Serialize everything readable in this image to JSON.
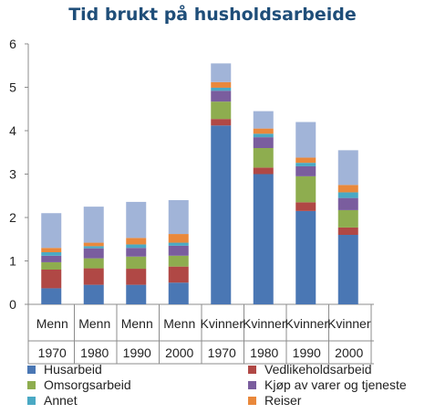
{
  "title": "Tid brukt på husholdsarbeide",
  "chart_data": {
    "type": "bar",
    "stacked": true,
    "title": "Tid brukt på husholdsarbeide",
    "categories": [
      {
        "group": "Menn",
        "year": "1970"
      },
      {
        "group": "Menn",
        "year": "1980"
      },
      {
        "group": "Menn",
        "year": "1990"
      },
      {
        "group": "Menn",
        "year": "2000"
      },
      {
        "group": "Kvinner",
        "year": "1970"
      },
      {
        "group": "Kvinner",
        "year": "1980"
      },
      {
        "group": "Kvinner",
        "year": "1990"
      },
      {
        "group": "Kvinner",
        "year": "2000"
      }
    ],
    "ylim": [
      0,
      6
    ],
    "yticks": [
      "0",
      "1",
      "2",
      "3",
      "4",
      "5",
      "6"
    ],
    "grid": false,
    "legend_position": "bottom",
    "series": [
      {
        "name": "Husarbeid",
        "color": "#4a77b4",
        "values": [
          0.37,
          0.45,
          0.45,
          0.5,
          4.12,
          3.0,
          2.15,
          1.6
        ]
      },
      {
        "name": "Vedlikeholdsarbeid",
        "color": "#b04845",
        "values": [
          0.43,
          0.38,
          0.37,
          0.37,
          0.15,
          0.15,
          0.2,
          0.17
        ]
      },
      {
        "name": "Omsorgsarbeid",
        "color": "#8ead4f",
        "values": [
          0.17,
          0.23,
          0.28,
          0.25,
          0.4,
          0.45,
          0.6,
          0.4
        ]
      },
      {
        "name": "Kjøp av varer og tjeneste",
        "color": "#7a5d9e",
        "values": [
          0.15,
          0.23,
          0.2,
          0.23,
          0.25,
          0.25,
          0.23,
          0.28
        ]
      },
      {
        "name": "Annet",
        "color": "#4aa9c4",
        "values": [
          0.08,
          0.05,
          0.08,
          0.07,
          0.07,
          0.08,
          0.08,
          0.13
        ]
      },
      {
        "name": "Reiser",
        "color": "#e9883b",
        "values": [
          0.1,
          0.08,
          0.15,
          0.2,
          0.13,
          0.12,
          0.12,
          0.17
        ]
      },
      {
        "name": "",
        "color": "#a1b4d8",
        "values": [
          0.8,
          0.83,
          0.83,
          0.78,
          0.43,
          0.4,
          0.82,
          0.8
        ]
      }
    ]
  }
}
